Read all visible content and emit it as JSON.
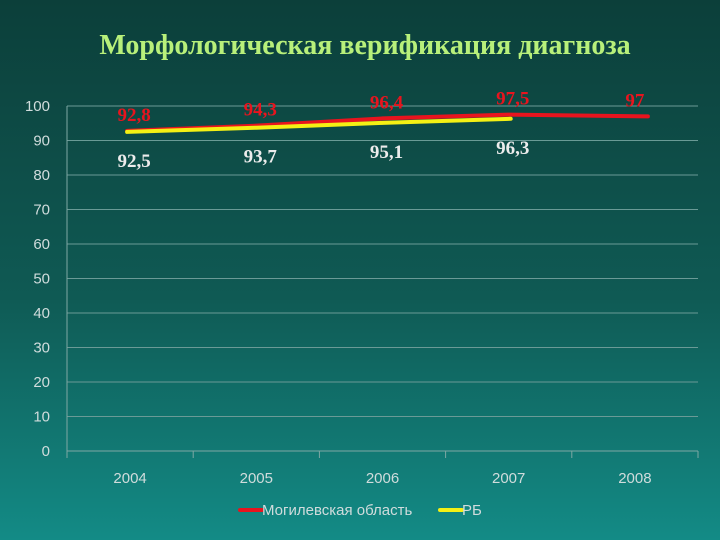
{
  "page": {
    "title": "Морфологическая верификация диагноза"
  },
  "chart_data": {
    "type": "line",
    "title": "Морфологическая верификация диагноза",
    "xlabel": "",
    "ylabel": "",
    "categories": [
      "2004",
      "2005",
      "2006",
      "2007",
      "2008"
    ],
    "ylim": [
      0,
      100
    ],
    "yticks": [
      "0",
      "10",
      "20",
      "30",
      "40",
      "50",
      "60",
      "70",
      "80",
      "90",
      "100"
    ],
    "grid": true,
    "legend_position": "bottom",
    "series": [
      {
        "name": "Могилевская область",
        "color": "#e8141e",
        "label_color": "#e8141e",
        "values": [
          92.8,
          94.3,
          96.4,
          97.5,
          97
        ],
        "labels": [
          "92,8",
          "94,3",
          "96,4",
          "97,5",
          "97"
        ],
        "label_side": "above"
      },
      {
        "name": "РБ",
        "color": "#f4f014",
        "label_color": "#ececec",
        "values": [
          92.5,
          93.7,
          95.1,
          96.3,
          null
        ],
        "labels": [
          "92,5",
          "93,7",
          "95,1",
          "96,3",
          ""
        ],
        "label_side": "below"
      }
    ]
  }
}
